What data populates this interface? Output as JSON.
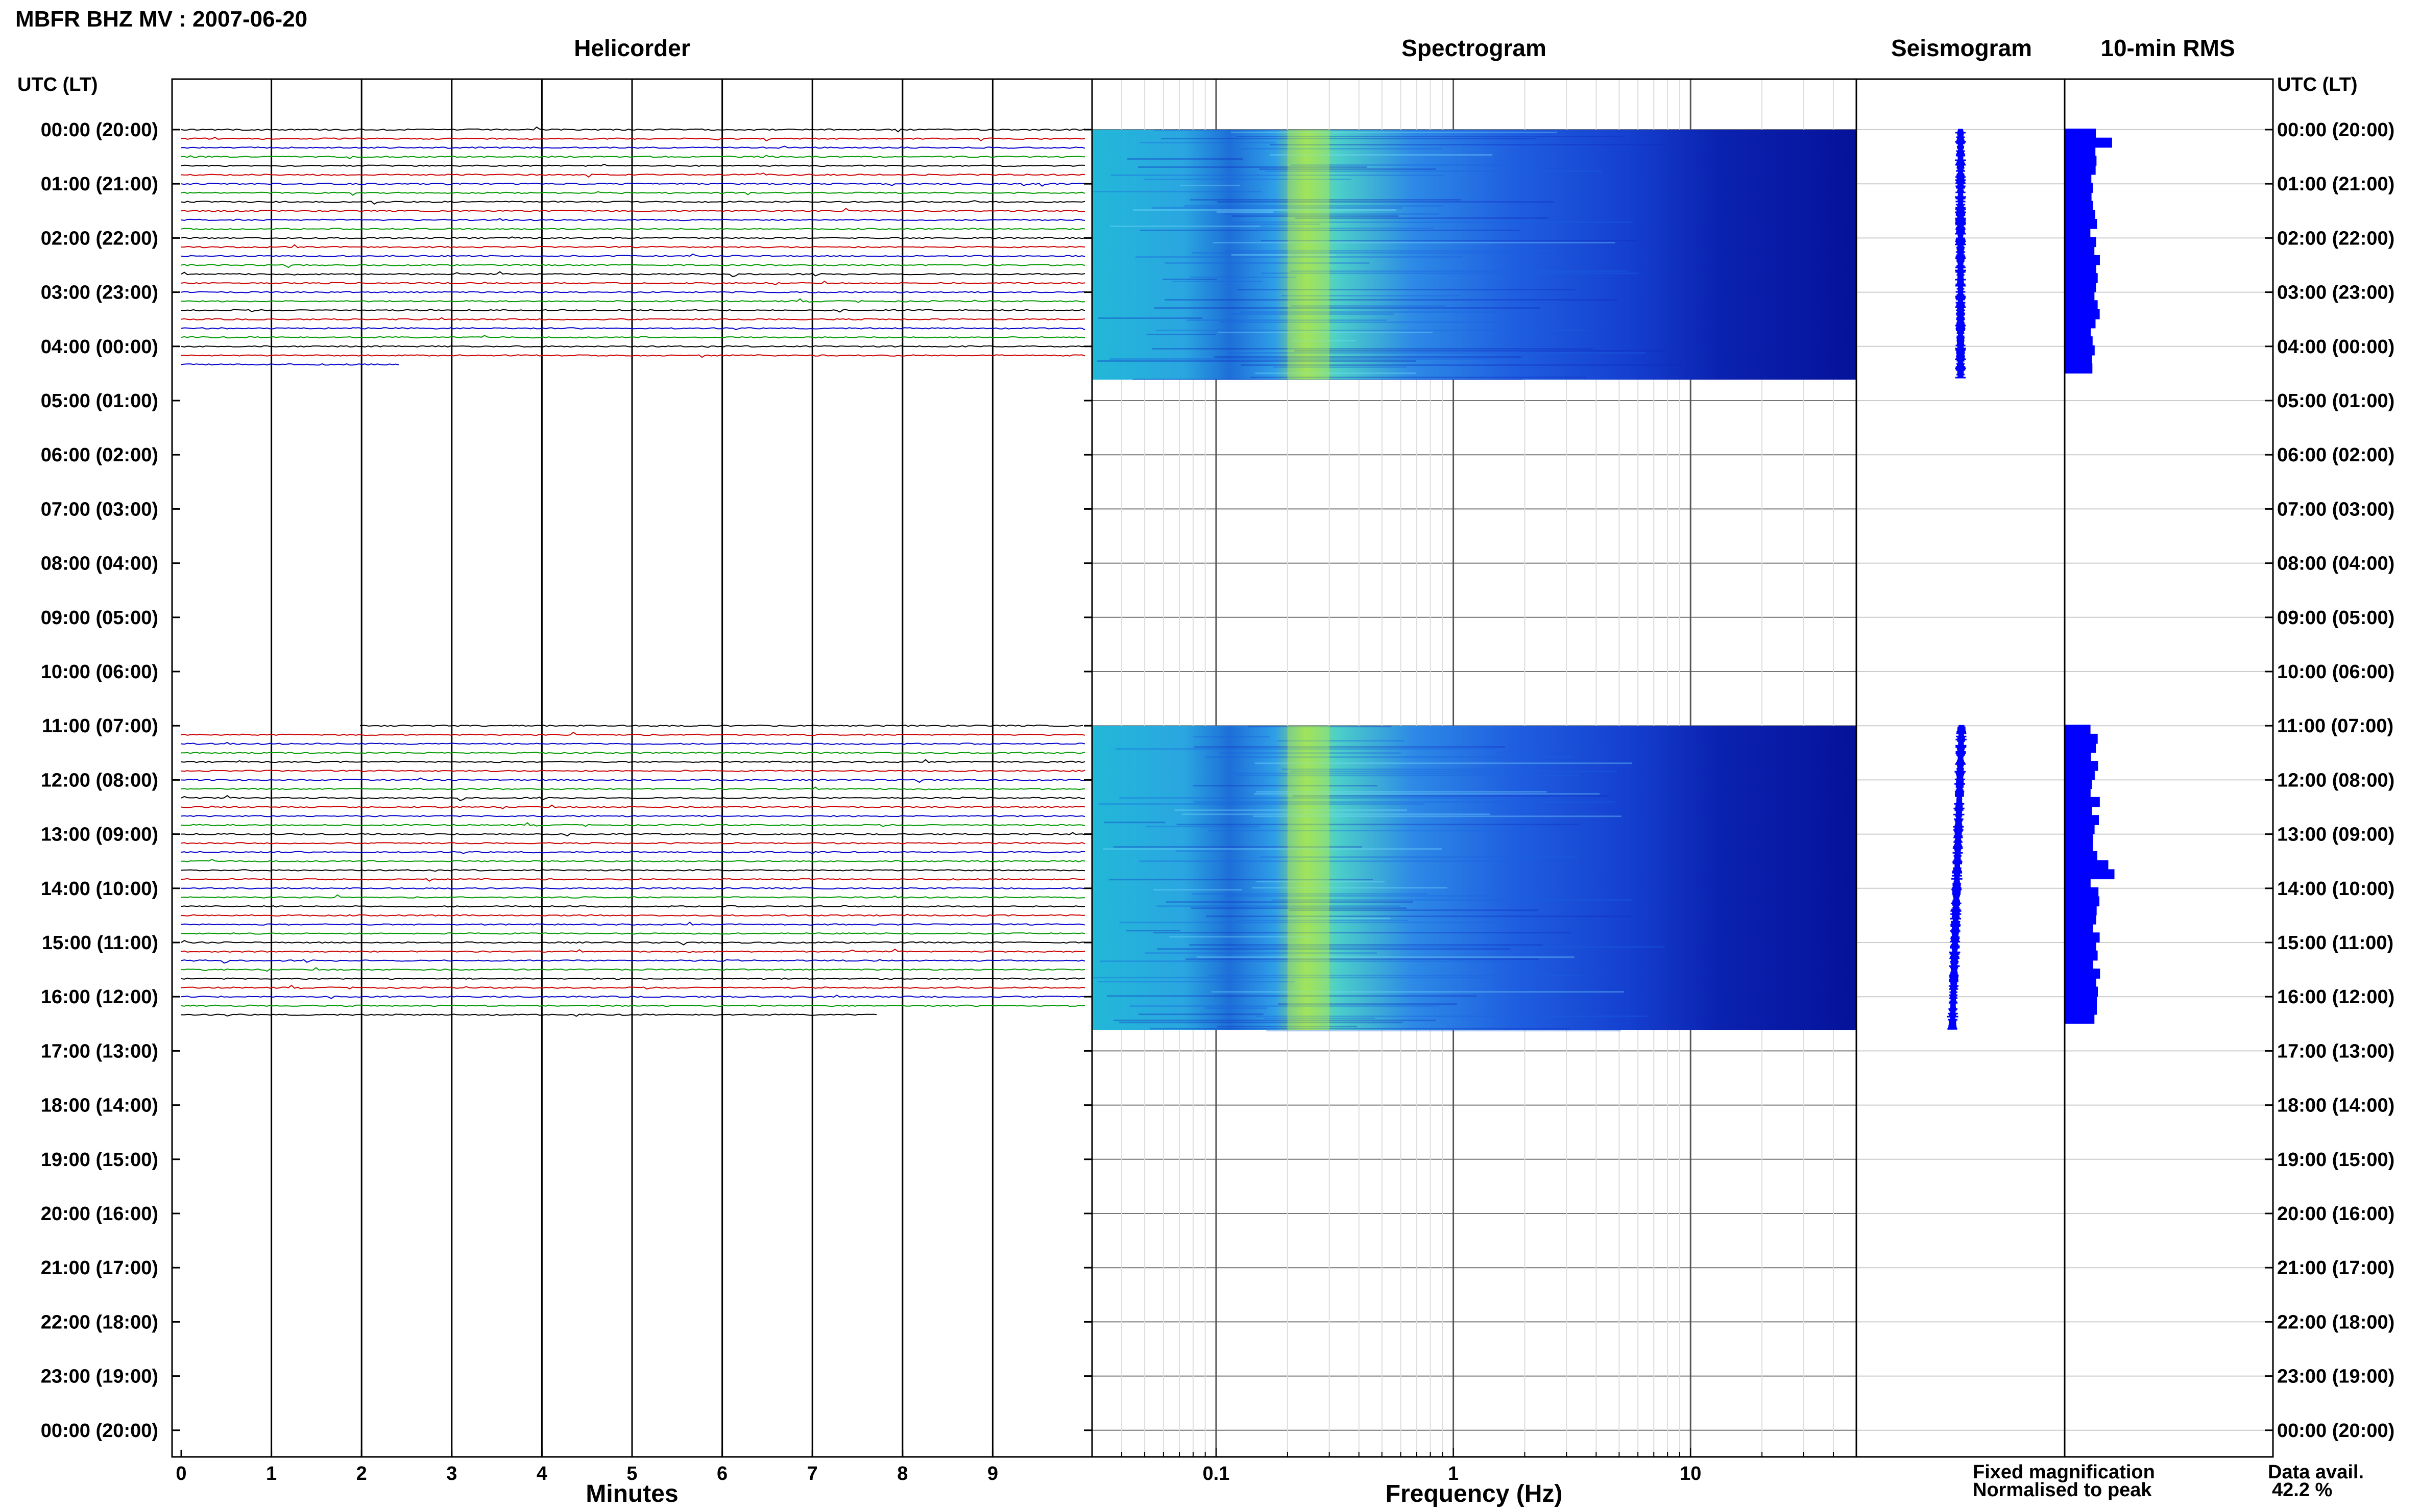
{
  "title": "MBFR BHZ MV : 2007-06-20",
  "panels": {
    "helicorder": "Helicorder",
    "spectrogram": "Spectrogram",
    "seismogram": "Seismogram",
    "rms": "10-min RMS"
  },
  "time_axis_header": "UTC (LT)",
  "time_labels": [
    "00:00 (20:00)",
    "01:00 (21:00)",
    "02:00 (22:00)",
    "03:00 (23:00)",
    "04:00 (00:00)",
    "05:00 (01:00)",
    "06:00 (02:00)",
    "07:00 (03:00)",
    "08:00 (04:00)",
    "09:00 (05:00)",
    "10:00 (06:00)",
    "11:00 (07:00)",
    "12:00 (08:00)",
    "13:00 (09:00)",
    "14:00 (10:00)",
    "15:00 (11:00)",
    "16:00 (12:00)",
    "17:00 (13:00)",
    "18:00 (14:00)",
    "19:00 (15:00)",
    "20:00 (16:00)",
    "21:00 (17:00)",
    "22:00 (18:00)",
    "23:00 (19:00)",
    "00:00 (20:00)"
  ],
  "legend": {
    "fixed": "Fixed magnification",
    "normalised": "Normalised to peak",
    "fixed_color": "#0000ff",
    "normalised_color": "#ff0000"
  },
  "data_avail_label": "Data avail.",
  "data_avail_value": "42.2 %",
  "chart_data": [
    {
      "type": "line",
      "title": "Helicorder",
      "xlabel": "Minutes",
      "x_ticks": [
        "0",
        "1",
        "2",
        "3",
        "4",
        "5",
        "6",
        "7",
        "8",
        "9"
      ],
      "xlim": [
        0,
        10
      ],
      "ylim_hours": [
        0,
        24
      ],
      "trace_colors": [
        "#000000",
        "#cc0000",
        "#0000cc",
        "#009900"
      ],
      "trace_interval_min": 10,
      "data_segments_hours": [
        [
          0,
          4.5
        ],
        [
          11,
          16.5
        ]
      ]
    },
    {
      "type": "heatmap",
      "title": "Spectrogram",
      "xlabel": "Frequency (Hz)",
      "x_scale": "log",
      "x_ticks": [
        "0.1",
        "1",
        "10"
      ],
      "xlim": [
        0.03,
        50
      ],
      "colormap": "jet (dark blue = low, green = high)",
      "data_segments_hours": [
        [
          0,
          4.5
        ],
        [
          11,
          16.5
        ]
      ]
    },
    {
      "type": "line",
      "title": "Seismogram",
      "data_segments_hours": [
        [
          0,
          4.5
        ],
        [
          11,
          16.5
        ]
      ]
    },
    {
      "type": "bar",
      "title": "10-min RMS",
      "orientation": "horizontal",
      "color": "#0000ff",
      "data_segments_hours": [
        [
          0,
          4.5
        ],
        [
          11,
          16.5
        ]
      ]
    }
  ]
}
